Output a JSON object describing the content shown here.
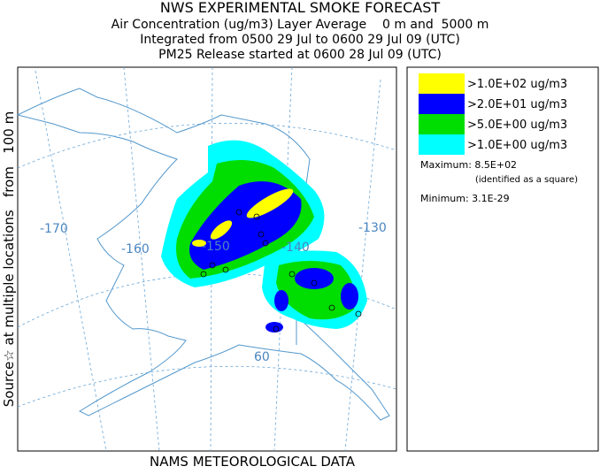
{
  "header": {
    "title": "NWS EXPERIMENTAL SMOKE FORECAST",
    "lines": [
      "Air Concentration (ug/m3) Layer Average    0 m and  5000 m",
      "Integrated from 0500 29 Jul to 0600 29 Jul 09 (UTC)",
      "PM25 Release started at 0600 28 Jul 09 (UTC)"
    ]
  },
  "side_label": "Source☆ at multiple locations   from   100 m",
  "footer": "NAMS METEOROLOGICAL DATA",
  "legend": {
    "items": [
      {
        "label": ">1.0E+02 ug/m3",
        "color": "#ffff00"
      },
      {
        "label": ">2.0E+01 ug/m3",
        "color": "#0000ff"
      },
      {
        "label": ">5.0E+00 ug/m3",
        "color": "#00dd00"
      },
      {
        "label": ">1.0E+00 ug/m3",
        "color": "#00ffff"
      }
    ],
    "maximum": "Maximum: 8.5E+02",
    "maximum_note": "(identified as a square)",
    "minimum": "Minimum: 3.1E-29"
  },
  "map": {
    "grid_labels": [
      "-170",
      "-160",
      "-150",
      "-140",
      "-130",
      "60"
    ]
  }
}
